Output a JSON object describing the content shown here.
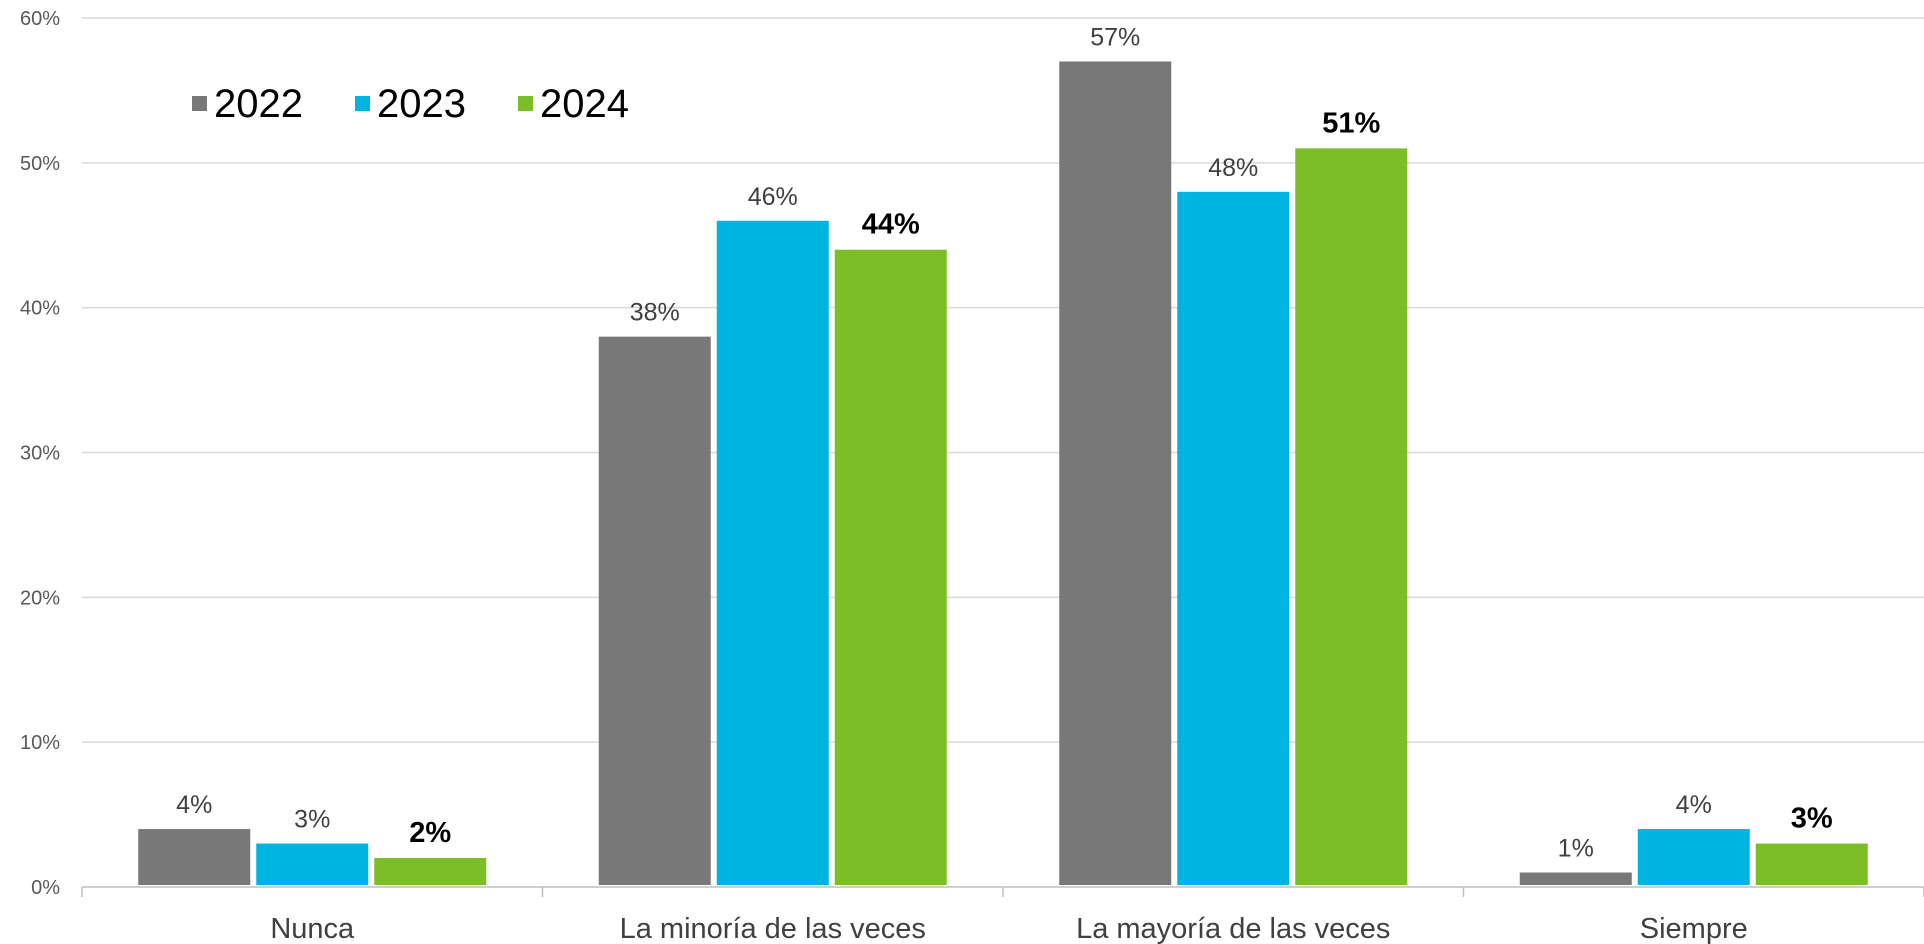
{
  "chart_data": {
    "type": "bar",
    "categories": [
      "Nunca",
      "La minoría de las veces",
      "La mayoría de las veces",
      "Siempre"
    ],
    "series": [
      {
        "name": "2022",
        "color": "#787878",
        "values": [
          4,
          38,
          57,
          1
        ],
        "labels": [
          "4%",
          "38%",
          "57%",
          "1%"
        ],
        "label_bold": false
      },
      {
        "name": "2023",
        "color": "#00B4E0",
        "values": [
          3,
          46,
          48,
          4
        ],
        "labels": [
          "3%",
          "46%",
          "48%",
          "4%"
        ],
        "label_bold": false
      },
      {
        "name": "2024",
        "color": "#7BBE25",
        "values": [
          2,
          44,
          51,
          3
        ],
        "labels": [
          "2%",
          "44%",
          "51%",
          "3%"
        ],
        "label_bold": true
      }
    ],
    "yticks": [
      0,
      10,
      20,
      30,
      40,
      50,
      60
    ],
    "ytick_labels": [
      "0%",
      "10%",
      "20%",
      "30%",
      "40%",
      "50%",
      "60%"
    ],
    "ylim": [
      0,
      60
    ],
    "title": "",
    "xlabel": "",
    "ylabel": "",
    "grid": true,
    "legend": "top-left"
  }
}
